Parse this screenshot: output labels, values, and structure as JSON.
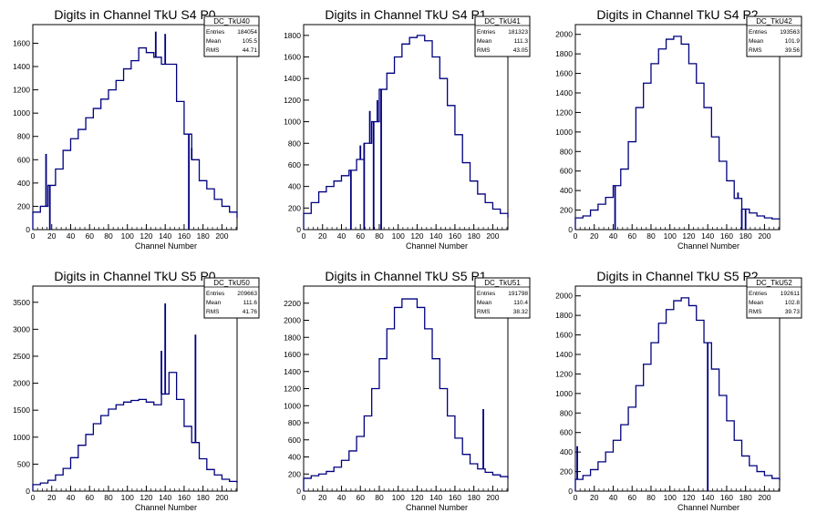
{
  "chart_data": [
    {
      "type": "histogram",
      "title": "Digits in Channel TkU S4 P0",
      "xlabel": "Channel Number",
      "ylabel": "",
      "xlim": [
        0,
        216
      ],
      "ylim": [
        0,
        1760
      ],
      "xticks": [
        0,
        20,
        40,
        60,
        80,
        100,
        120,
        140,
        160,
        180,
        200
      ],
      "yticks": [
        0,
        200,
        400,
        600,
        800,
        1000,
        1200,
        1400,
        1600
      ],
      "stats": {
        "name": "DC_TkU40",
        "entries": "184054",
        "mean": "105.5",
        "rms": "44.71"
      },
      "color": "#00007f",
      "x": [
        0,
        8,
        16,
        24,
        32,
        40,
        48,
        56,
        64,
        72,
        80,
        88,
        96,
        104,
        112,
        120,
        128,
        136,
        144,
        152,
        160,
        168,
        176,
        184,
        192,
        200,
        208,
        216
      ],
      "y": [
        150,
        200,
        380,
        520,
        680,
        780,
        860,
        960,
        1040,
        1120,
        1200,
        1280,
        1380,
        1450,
        1560,
        1520,
        1480,
        1420,
        1420,
        1100,
        820,
        600,
        420,
        350,
        260,
        200,
        150,
        100
      ],
      "spikes": [
        {
          "x": 14,
          "y": 650
        },
        {
          "x": 18,
          "y": 0
        },
        {
          "x": 130,
          "y": 1700
        },
        {
          "x": 140,
          "y": 1680
        },
        {
          "x": 165,
          "y": 0
        },
        {
          "x": 168,
          "y": 700
        }
      ]
    },
    {
      "type": "histogram",
      "title": "Digits in Channel TkU S4 P1",
      "xlabel": "Channel Number",
      "ylabel": "",
      "xlim": [
        0,
        216
      ],
      "ylim": [
        0,
        1900
      ],
      "xticks": [
        0,
        20,
        40,
        60,
        80,
        100,
        120,
        140,
        160,
        180,
        200
      ],
      "yticks": [
        0,
        200,
        400,
        600,
        800,
        1000,
        1200,
        1400,
        1600,
        1800
      ],
      "stats": {
        "name": "DC_TkU41",
        "entries": "181323",
        "mean": "111.3",
        "rms": "43.05"
      },
      "color": "#00007f",
      "x": [
        0,
        8,
        16,
        24,
        32,
        40,
        48,
        56,
        64,
        72,
        80,
        88,
        96,
        104,
        112,
        120,
        128,
        136,
        144,
        152,
        160,
        168,
        176,
        184,
        192,
        200,
        208,
        216
      ],
      "y": [
        150,
        250,
        350,
        400,
        450,
        500,
        550,
        650,
        800,
        1000,
        1300,
        1450,
        1600,
        1720,
        1780,
        1800,
        1750,
        1600,
        1400,
        1150,
        880,
        620,
        450,
        330,
        250,
        190,
        150,
        110
      ],
      "spikes": [
        {
          "x": 50,
          "y": 0
        },
        {
          "x": 60,
          "y": 780
        },
        {
          "x": 64,
          "y": 0
        },
        {
          "x": 70,
          "y": 1100
        },
        {
          "x": 74,
          "y": 0
        },
        {
          "x": 78,
          "y": 1200
        },
        {
          "x": 82,
          "y": 0
        }
      ]
    },
    {
      "type": "histogram",
      "title": "Digits in Channel TkU S4 P2",
      "xlabel": "Channel Number",
      "ylabel": "",
      "xlim": [
        0,
        216
      ],
      "ylim": [
        0,
        2100
      ],
      "xticks": [
        0,
        20,
        40,
        60,
        80,
        100,
        120,
        140,
        160,
        180,
        200
      ],
      "yticks": [
        0,
        200,
        400,
        600,
        800,
        1000,
        1200,
        1400,
        1600,
        1800,
        2000
      ],
      "stats": {
        "name": "DC_TkU42",
        "entries": "193563",
        "mean": "101.9",
        "rms": "39.56"
      },
      "color": "#00007f",
      "x": [
        0,
        8,
        16,
        24,
        32,
        40,
        48,
        56,
        64,
        72,
        80,
        88,
        96,
        104,
        112,
        120,
        128,
        136,
        144,
        152,
        160,
        168,
        176,
        184,
        192,
        200,
        208,
        216
      ],
      "y": [
        120,
        140,
        200,
        260,
        330,
        450,
        620,
        900,
        1250,
        1500,
        1700,
        1850,
        1950,
        1980,
        1900,
        1700,
        1500,
        1250,
        950,
        700,
        500,
        320,
        210,
        170,
        140,
        120,
        110,
        100
      ],
      "spikes": [
        {
          "x": 42,
          "y": 0
        },
        {
          "x": 172,
          "y": 380
        },
        {
          "x": 176,
          "y": 0
        },
        {
          "x": 180,
          "y": 0
        }
      ]
    },
    {
      "type": "histogram",
      "title": "Digits in Channel TkU S5 P0",
      "xlabel": "Channel Number",
      "ylabel": "",
      "xlim": [
        0,
        216
      ],
      "ylim": [
        0,
        3800
      ],
      "xticks": [
        0,
        20,
        40,
        60,
        80,
        100,
        120,
        140,
        160,
        180,
        200
      ],
      "yticks": [
        0,
        500,
        1000,
        1500,
        2000,
        2500,
        3000,
        3500
      ],
      "stats": {
        "name": "DC_TkU50",
        "entries": "209663",
        "mean": "111.6",
        "rms": "41.76"
      },
      "color": "#00007f",
      "x": [
        0,
        8,
        16,
        24,
        32,
        40,
        48,
        56,
        64,
        72,
        80,
        88,
        96,
        104,
        112,
        120,
        128,
        136,
        144,
        152,
        160,
        168,
        176,
        184,
        192,
        200,
        208,
        216
      ],
      "y": [
        120,
        150,
        200,
        300,
        420,
        620,
        850,
        1050,
        1250,
        1400,
        1520,
        1600,
        1650,
        1680,
        1700,
        1650,
        1600,
        1800,
        2200,
        1700,
        1200,
        900,
        600,
        400,
        300,
        220,
        180,
        150
      ],
      "spikes": [
        {
          "x": 140,
          "y": 3480
        },
        {
          "x": 136,
          "y": 2600
        },
        {
          "x": 172,
          "y": 2900
        }
      ]
    },
    {
      "type": "histogram",
      "title": "Digits in Channel TkU S5 P1",
      "xlabel": "Channel Number",
      "ylabel": "",
      "xlim": [
        0,
        216
      ],
      "ylim": [
        0,
        2400
      ],
      "xticks": [
        0,
        20,
        40,
        60,
        80,
        100,
        120,
        140,
        160,
        180,
        200
      ],
      "yticks": [
        0,
        200,
        400,
        600,
        800,
        1000,
        1200,
        1400,
        1600,
        1800,
        2000,
        2200
      ],
      "stats": {
        "name": "DC_TkU51",
        "entries": "191798",
        "mean": "110.4",
        "rms": "38.32"
      },
      "color": "#00007f",
      "x": [
        0,
        8,
        16,
        24,
        32,
        40,
        48,
        56,
        64,
        72,
        80,
        88,
        96,
        104,
        112,
        120,
        128,
        136,
        144,
        152,
        160,
        168,
        176,
        184,
        192,
        200,
        208,
        216
      ],
      "y": [
        150,
        180,
        200,
        230,
        280,
        360,
        470,
        640,
        880,
        1200,
        1550,
        1900,
        2150,
        2250,
        2250,
        2150,
        1900,
        1550,
        1200,
        880,
        620,
        430,
        320,
        260,
        220,
        190,
        170,
        150
      ],
      "spikes": [
        {
          "x": 190,
          "y": 960
        }
      ]
    },
    {
      "type": "histogram",
      "title": "Digits in Channel TkU S5 P2",
      "xlabel": "Channel Number",
      "ylabel": "",
      "xlim": [
        0,
        216
      ],
      "ylim": [
        0,
        2100
      ],
      "xticks": [
        0,
        20,
        40,
        60,
        80,
        100,
        120,
        140,
        160,
        180,
        200
      ],
      "yticks": [
        0,
        200,
        400,
        600,
        800,
        1000,
        1200,
        1400,
        1600,
        1800,
        2000
      ],
      "stats": {
        "name": "DC_TkU52",
        "entries": "192611",
        "mean": "102.8",
        "rms": "39.73"
      },
      "color": "#00007f",
      "x": [
        0,
        8,
        16,
        24,
        32,
        40,
        48,
        56,
        64,
        72,
        80,
        88,
        96,
        104,
        112,
        120,
        128,
        136,
        144,
        152,
        160,
        168,
        176,
        184,
        192,
        200,
        208,
        216
      ],
      "y": [
        120,
        160,
        220,
        300,
        400,
        520,
        680,
        860,
        1080,
        1300,
        1520,
        1720,
        1860,
        1950,
        1980,
        1900,
        1750,
        1520,
        1250,
        980,
        720,
        520,
        360,
        260,
        200,
        160,
        130,
        110
      ],
      "spikes": [
        {
          "x": 2,
          "y": 460
        },
        {
          "x": 140,
          "y": 0
        }
      ]
    }
  ]
}
